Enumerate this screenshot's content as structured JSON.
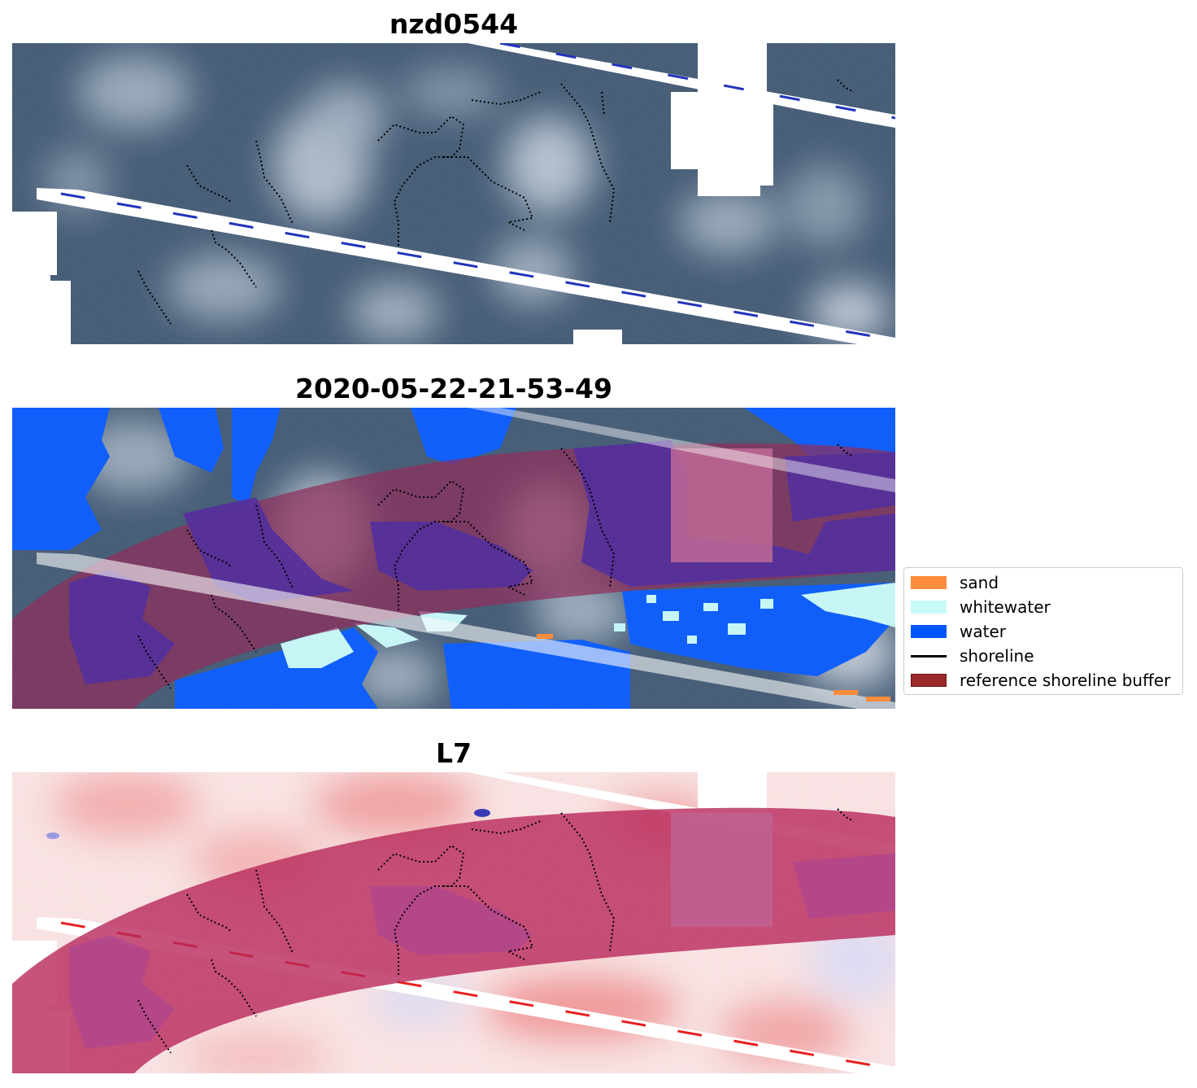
{
  "panels": {
    "top_title": "nzd0544",
    "middle_title": "2020-05-22-21-53-49",
    "bottom_title": "L7"
  },
  "legend": {
    "items": [
      {
        "label": "sand",
        "color": "#ff8c3c",
        "kind": "patch"
      },
      {
        "label": "whitewater",
        "color": "#c8fafa",
        "kind": "patch"
      },
      {
        "label": "water",
        "color": "#0055ff",
        "kind": "patch"
      },
      {
        "label": "shoreline",
        "color": "#000000",
        "kind": "line"
      },
      {
        "label": "reference shoreline buffer",
        "color": "#8b1a1a",
        "kind": "patch"
      }
    ]
  },
  "colors": {
    "imagery_dark": "#3a4f66",
    "imagery_light": "#b9c6d3",
    "buffer_overlay": "#8b2050",
    "buffer_on_water": "#4b2296",
    "index_positive": "#f07070",
    "index_negative": "#3333cc"
  }
}
